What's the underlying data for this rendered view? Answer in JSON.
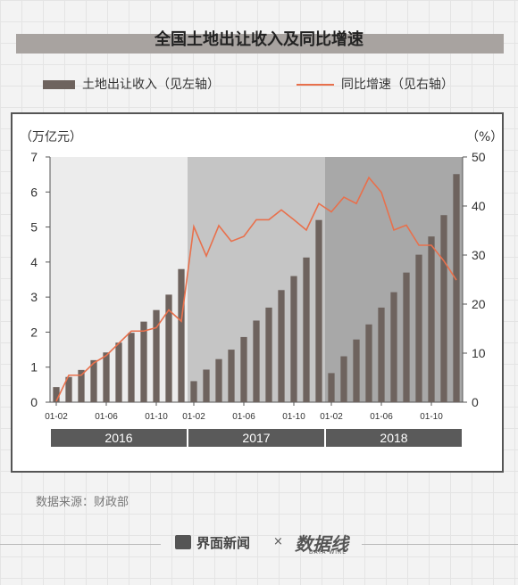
{
  "title": "全国土地出让收入及同比增速",
  "legend": {
    "bars": "土地出让收入（见左轴）",
    "line": "同比增速（见右轴）"
  },
  "axis": {
    "left_unit": "（万亿元）",
    "right_unit": "（%）"
  },
  "source": "数据来源：财政部",
  "footer": {
    "brand": "界面新闻",
    "x": "×",
    "logo2": "数据线",
    "logo2_sub": "DATA WIRE",
    "brand_icon": "jiemian-logo-icon"
  },
  "colors": {
    "bar": "#6e635e",
    "line": "#e8704c",
    "band2016": "#ececec",
    "band2017": "#c5c5c5",
    "band2018": "#a8a8a8",
    "year_bar": "#5a5a5a"
  },
  "chart_data": {
    "type": "bar+line",
    "years": [
      "2016",
      "2017",
      "2018"
    ],
    "x_ticks_shown": [
      "01-02",
      "01-06",
      "01-10"
    ],
    "left_axis": {
      "label": "（万亿元）",
      "range": [
        0,
        7
      ],
      "ticks": [
        0,
        1,
        2,
        3,
        4,
        5,
        6,
        7
      ]
    },
    "right_axis": {
      "label": "（%）",
      "range": [
        0,
        50
      ],
      "ticks": [
        0,
        10,
        20,
        30,
        40,
        50
      ]
    },
    "periods": [
      "2016-01-02",
      "2016-03",
      "2016-04",
      "2016-05",
      "2016-06",
      "2016-07",
      "2016-08",
      "2016-09",
      "2016-10",
      "2016-11",
      "2016-12",
      "2017-01-02",
      "2017-03",
      "2017-04",
      "2017-05",
      "2017-06",
      "2017-07",
      "2017-08",
      "2017-09",
      "2017-10",
      "2017-11",
      "2017-12",
      "2018-01-02",
      "2018-03",
      "2018-04",
      "2018-05",
      "2018-06",
      "2018-07",
      "2018-08",
      "2018-09",
      "2018-10",
      "2018-11",
      "2018-12"
    ],
    "series": [
      {
        "name": "土地出让收入",
        "axis": "left",
        "values": [
          0.43,
          0.72,
          0.92,
          1.2,
          1.42,
          1.7,
          1.98,
          2.3,
          2.63,
          3.07,
          3.8,
          0.6,
          0.93,
          1.23,
          1.5,
          1.86,
          2.33,
          2.7,
          3.2,
          3.6,
          4.13,
          5.2,
          0.83,
          1.31,
          1.79,
          2.22,
          2.7,
          3.14,
          3.7,
          4.21,
          4.73,
          5.34,
          6.51
        ]
      },
      {
        "name": "同比增速",
        "axis": "right",
        "values": [
          0.2,
          5.5,
          5.5,
          8,
          9.5,
          12,
          14.5,
          14.5,
          15.2,
          18.8,
          16.5,
          35.8,
          29.8,
          36,
          32.8,
          33.8,
          37.2,
          37.2,
          39.2,
          37.2,
          35.1,
          40.5,
          38.8,
          41.8,
          40.5,
          45.8,
          42.8,
          35.1,
          36.1,
          32,
          32,
          28.8,
          24.9
        ]
      }
    ]
  }
}
